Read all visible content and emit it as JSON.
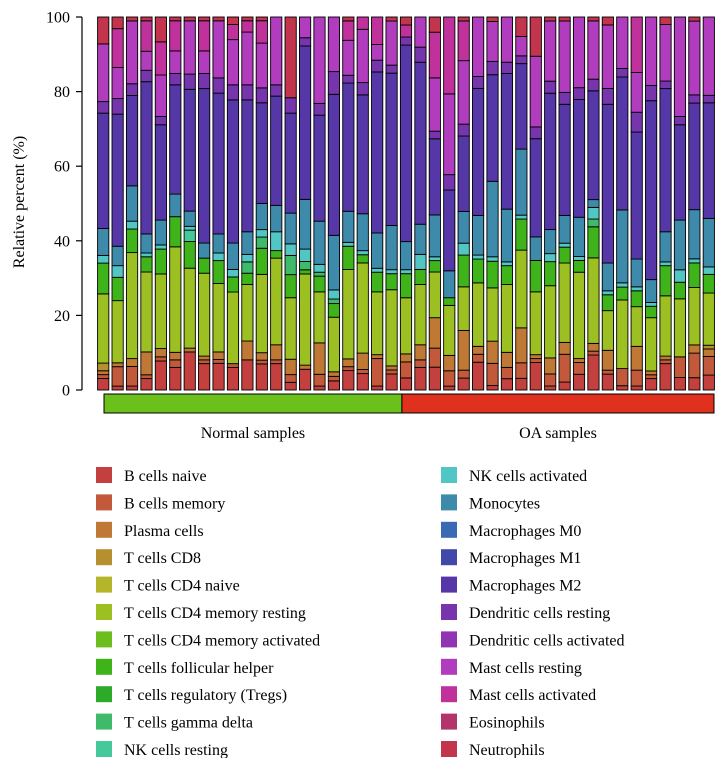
{
  "chart_data": {
    "type": "bar",
    "stacked": true,
    "ylabel": "Relative percent (%)",
    "ylim": [
      0,
      100
    ],
    "yticks": [
      0,
      20,
      40,
      60,
      80,
      100
    ],
    "groups": [
      {
        "label": "Normal samples",
        "n": 21,
        "color": "#6cc01c"
      },
      {
        "label": "OA samples",
        "n": 22,
        "color": "#e0301e"
      }
    ],
    "legend": {
      "position": "bottom",
      "columns": 2
    },
    "series": [
      {
        "name": "B cells naive",
        "color": "#c3403f",
        "values": [
          3,
          1,
          1,
          3,
          7,
          6,
          10,
          7,
          7,
          6,
          8,
          7,
          7,
          2,
          5,
          1,
          2,
          5,
          4,
          1,
          4,
          3,
          6,
          6,
          1,
          3,
          7,
          1,
          3,
          3,
          7,
          1,
          2,
          4,
          9,
          4,
          1,
          1,
          3,
          7,
          3,
          3,
          4
        ]
      },
      {
        "name": "B cells memory",
        "color": "#c1593a",
        "values": [
          1,
          5,
          5,
          1,
          1,
          2,
          0,
          1,
          1,
          1,
          0,
          1,
          1,
          2,
          0,
          3,
          1,
          1,
          1,
          7,
          1,
          4,
          2,
          5,
          4,
          2,
          2,
          5,
          3,
          4,
          1,
          3,
          7,
          3,
          1,
          1,
          4,
          4,
          1,
          1,
          5,
          6,
          5
        ]
      },
      {
        "name": "Plasma cells",
        "color": "#c07935",
        "values": [
          1,
          1,
          2,
          6,
          2,
          2,
          1,
          1,
          2,
          0,
          5,
          2,
          4,
          4,
          1,
          8,
          1,
          2,
          4,
          1,
          1,
          2,
          4,
          8,
          4,
          10,
          2,
          5,
          4,
          9,
          1,
          4,
          3,
          1,
          2,
          5,
          0,
          6,
          1,
          1,
          0,
          2,
          2
        ]
      },
      {
        "name": "T cells CD8",
        "color": "#b68f2e",
        "values": [
          2,
          0,
          0,
          0,
          0,
          0,
          0,
          0,
          0,
          0,
          0,
          0,
          0,
          0,
          0,
          0,
          0,
          0,
          0,
          0,
          0,
          0,
          0,
          0,
          0,
          0,
          0,
          0,
          0,
          0,
          0,
          0,
          0,
          0,
          0,
          0,
          0,
          0,
          0,
          0,
          0,
          0,
          1
        ]
      },
      {
        "name": "T cells CD4 naive",
        "color": "#b5b52a",
        "values": [
          0,
          0,
          0,
          0,
          0,
          0,
          0,
          0,
          0,
          0,
          0,
          0,
          0,
          0,
          0,
          0,
          0,
          0,
          0,
          0,
          0,
          0,
          0,
          0,
          0,
          0,
          0,
          0,
          0,
          0,
          0,
          0,
          0,
          0,
          0,
          0,
          0,
          0,
          0,
          0,
          0,
          0,
          0
        ]
      },
      {
        "name": "T cells CD4 memory resting",
        "color": "#9cc022",
        "values": [
          18,
          16,
          27,
          21,
          18,
          28,
          21,
          22,
          18,
          19,
          15,
          21,
          23,
          16,
          22,
          13,
          12,
          23,
          22,
          16,
          19,
          14,
          16,
          12,
          13,
          11,
          16,
          12,
          18,
          20,
          16,
          18,
          20,
          22,
          22,
          10,
          16,
          10,
          14,
          16,
          14,
          14,
          14
        ]
      },
      {
        "name": "T cells CD4 memory activated",
        "color": "#6cbd1e",
        "values": [
          0,
          0,
          0,
          0,
          0,
          0,
          0,
          0,
          0,
          0,
          0,
          0,
          0,
          0,
          0,
          0,
          0,
          0,
          0,
          0,
          0,
          0,
          0,
          0,
          0,
          0,
          0,
          0,
          0,
          0,
          0,
          0,
          0,
          0,
          0,
          0,
          0,
          0,
          0,
          0,
          0,
          0,
          0
        ]
      },
      {
        "name": "T cells follicular helper",
        "color": "#3fb31a",
        "values": [
          8,
          6,
          6,
          4,
          6,
          8,
          7,
          4,
          6,
          4,
          3,
          7,
          2,
          6,
          1,
          4,
          3,
          6,
          2,
          5,
          4,
          6,
          4,
          3,
          2,
          8,
          6,
          6,
          5,
          8,
          8,
          6,
          4,
          3,
          8,
          4,
          3,
          4,
          3,
          8,
          4,
          6,
          5
        ]
      },
      {
        "name": "T cells regulatory (Tregs)",
        "color": "#2eaa2a",
        "values": [
          0,
          0,
          0,
          0,
          0,
          0,
          0,
          0,
          0,
          0,
          0,
          0,
          0,
          0,
          0,
          0,
          0,
          0,
          0,
          0,
          0,
          0,
          0,
          0,
          0,
          0,
          0,
          0,
          0,
          0,
          0,
          0,
          0,
          0,
          0,
          0,
          0,
          0,
          0,
          0,
          0,
          0,
          0
        ]
      },
      {
        "name": "T cells gamma delta",
        "color": "#3fba6b",
        "values": [
          0,
          0,
          0,
          0,
          0,
          0,
          0,
          0,
          0,
          0,
          3,
          3,
          0,
          5,
          2,
          1,
          1,
          0,
          0,
          0,
          0,
          0,
          0,
          0,
          0,
          0,
          0,
          0,
          0,
          0,
          0,
          0,
          0,
          0,
          2,
          0,
          0,
          0,
          0,
          0,
          0,
          0,
          0
        ]
      },
      {
        "name": "NK cells resting",
        "color": "#45c99a",
        "values": [
          0,
          0,
          0,
          0,
          0,
          0,
          3,
          0,
          0,
          0,
          0,
          0,
          0,
          0,
          0,
          0,
          0,
          0,
          0,
          0,
          0,
          0,
          0,
          0,
          0,
          0,
          0,
          0,
          0,
          0,
          0,
          0,
          0,
          0,
          0,
          0,
          0,
          0,
          0,
          0,
          0,
          0,
          0
        ]
      },
      {
        "name": "NK cells activated",
        "color": "#52c5c5",
        "values": [
          2,
          3,
          2,
          1,
          1,
          0,
          1,
          0,
          2,
          2,
          2,
          2,
          5,
          3,
          3,
          2,
          2,
          1,
          1,
          1,
          1,
          1,
          4,
          1,
          0,
          3,
          1,
          1,
          1,
          1,
          0,
          2,
          1,
          1,
          3,
          1,
          1,
          1,
          1,
          1,
          3,
          1,
          2
        ]
      },
      {
        "name": "Monocytes",
        "color": "#3d8aaa",
        "values": [
          7,
          5,
          9,
          5,
          6,
          6,
          4,
          4,
          5,
          7,
          6,
          7,
          7,
          8,
          12,
          11,
          12,
          8,
          9,
          9,
          11,
          7,
          8,
          11,
          7,
          8,
          10,
          17,
          14,
          17,
          6,
          6,
          7,
          10,
          2,
          7,
          17,
          7,
          6,
          8,
          12,
          12,
          13
        ]
      },
      {
        "name": "Macrophages M0",
        "color": "#3a6ab3",
        "values": [
          0,
          0,
          0,
          0,
          0,
          0,
          0,
          0,
          0,
          0,
          0,
          0,
          0,
          0,
          0,
          0,
          0,
          0,
          0,
          0,
          0,
          0,
          0,
          0,
          0,
          0,
          0,
          0,
          0,
          0,
          0,
          0,
          0,
          0,
          0,
          0,
          0,
          0,
          0,
          0,
          0,
          0,
          0
        ]
      },
      {
        "name": "Macrophages M1",
        "color": "#4148a9",
        "values": [
          0,
          0,
          0,
          0,
          0,
          0,
          0,
          0,
          0,
          0,
          0,
          0,
          0,
          0,
          0,
          0,
          0,
          0,
          0,
          0,
          0,
          0,
          0,
          0,
          0,
          0,
          0,
          0,
          0,
          0,
          0,
          0,
          0,
          0,
          0,
          0,
          0,
          0,
          0,
          0,
          0,
          0,
          0
        ]
      },
      {
        "name": "Macrophages M2",
        "color": "#5537a8",
        "values": [
          30,
          34,
          23,
          40,
          23,
          29,
          32,
          41,
          37,
          38,
          35,
          27,
          29,
          26,
          37,
          27,
          31,
          33,
          29,
          41,
          38,
          49,
          43,
          20,
          21,
          19,
          32,
          24,
          36,
          22,
          25,
          34,
          28,
          30,
          28,
          40,
          31,
          32,
          47,
          38,
          23,
          26,
          31
        ]
      },
      {
        "name": "Dendritic cells resting",
        "color": "#7634ad",
        "values": [
          3,
          4,
          3,
          3,
          2,
          3,
          4,
          4,
          4,
          4,
          4,
          4,
          3,
          4,
          2,
          3,
          5,
          2,
          3,
          3,
          2,
          2,
          4,
          2,
          4,
          3,
          3,
          3,
          3,
          2,
          3,
          3,
          3,
          3,
          3,
          4,
          2,
          5,
          4,
          2,
          2,
          2,
          2
        ]
      },
      {
        "name": "Dendritic cells activated",
        "color": "#9034b3",
        "values": [
          0,
          0,
          0,
          0,
          0,
          0,
          0,
          0,
          0,
          0,
          0,
          0,
          0,
          0,
          0,
          0,
          0,
          0,
          0,
          0,
          0,
          0,
          0,
          0,
          0,
          0,
          0,
          0,
          0,
          0,
          0,
          0,
          0,
          0,
          0,
          0,
          0,
          0,
          0,
          0,
          0,
          0,
          0
        ]
      },
      {
        "name": "Mast cells resting",
        "color": "#b23cbe",
        "values": [
          15,
          8,
          16,
          5,
          10,
          6,
          14,
          6,
          15,
          12,
          14,
          12,
          18,
          0,
          5,
          22,
          12,
          9,
          13,
          4,
          11,
          0,
          8,
          14,
          21,
          16,
          15,
          9,
          12,
          5,
          18,
          15,
          18,
          18,
          15,
          16,
          12,
          10,
          18,
          15,
          24,
          18,
          21
        ]
      },
      {
        "name": "Mast cells activated",
        "color": "#c1319c",
        "values": [
          0,
          10,
          0,
          8,
          8,
          8,
          0,
          8,
          0,
          4,
          3,
          6,
          0,
          0,
          0,
          0,
          0,
          5,
          3,
          7,
          0,
          3,
          0,
          12,
          20,
          10,
          0,
          0,
          0,
          0,
          0,
          0,
          0,
          0,
          0,
          0,
          0,
          14,
          0,
          0,
          0,
          0,
          0
        ]
      },
      {
        "name": "Eosinophils",
        "color": "#b3346a",
        "values": [
          0,
          0,
          0,
          0,
          0,
          0,
          0,
          0,
          0,
          0,
          0,
          0,
          0,
          0,
          0,
          0,
          0,
          0,
          0,
          0,
          0,
          0,
          0,
          0,
          0,
          0,
          0,
          0,
          0,
          0,
          0,
          0,
          0,
          0,
          0,
          0,
          0,
          0,
          0,
          0,
          0,
          0,
          0
        ]
      },
      {
        "name": "Neutrophils",
        "color": "#c2354d",
        "values": [
          7,
          3,
          1,
          1,
          6,
          1,
          1,
          1,
          1,
          2,
          1,
          1,
          0,
          21,
          0,
          0,
          0,
          1,
          0,
          0,
          1,
          2,
          0,
          4,
          0,
          1,
          0,
          1,
          0,
          5,
          10,
          1,
          1,
          0,
          1,
          2,
          0,
          0,
          0,
          2,
          0,
          1,
          0
        ]
      }
    ]
  }
}
